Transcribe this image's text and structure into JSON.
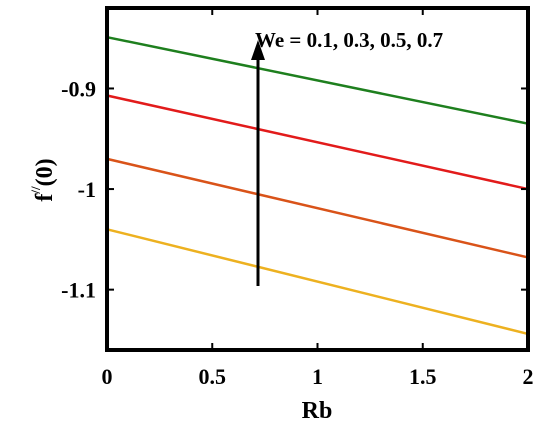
{
  "chart_data": {
    "type": "line",
    "xlabel": "Rb",
    "ylabel_main": "f",
    "ylabel_sup": "//",
    "ylabel_tail": "(0)",
    "xlim": [
      0,
      2
    ],
    "ylim": [
      -1.16,
      -0.82
    ],
    "xticks": [
      0,
      0.5,
      1,
      1.5,
      2
    ],
    "xtick_labels": [
      "0",
      "0.5",
      "1",
      "1.5",
      "2"
    ],
    "yticks": [
      -0.9,
      -1.0,
      -1.1
    ],
    "ytick_labels": [
      "-0.9",
      "-1",
      "-1.1"
    ],
    "grid": false,
    "annotation": "We = 0.1, 0.3, 0.5, 0.7",
    "series": [
      {
        "x": [
          0,
          2
        ],
        "y": [
          -1.04,
          -1.144
        ],
        "color": "#edb120"
      },
      {
        "x": [
          0,
          2
        ],
        "y": [
          -0.97,
          -1.068
        ],
        "color": "#d95319"
      },
      {
        "x": [
          0,
          2
        ],
        "y": [
          -0.907,
          -1.0
        ],
        "color": "#e21b1b"
      },
      {
        "x": [
          0,
          2
        ],
        "y": [
          -0.849,
          -0.935
        ],
        "color": "#1e7f1e"
      }
    ]
  }
}
